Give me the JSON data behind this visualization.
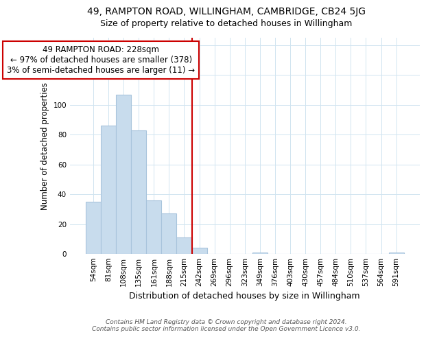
{
  "title": "49, RAMPTON ROAD, WILLINGHAM, CAMBRIDGE, CB24 5JG",
  "subtitle": "Size of property relative to detached houses in Willingham",
  "xlabel": "Distribution of detached houses by size in Willingham",
  "ylabel": "Number of detached properties",
  "bar_labels": [
    "54sqm",
    "81sqm",
    "108sqm",
    "135sqm",
    "161sqm",
    "188sqm",
    "215sqm",
    "242sqm",
    "269sqm",
    "296sqm",
    "323sqm",
    "349sqm",
    "376sqm",
    "403sqm",
    "430sqm",
    "457sqm",
    "484sqm",
    "510sqm",
    "537sqm",
    "564sqm",
    "591sqm"
  ],
  "bar_heights": [
    35,
    86,
    107,
    83,
    36,
    27,
    11,
    4,
    0,
    0,
    0,
    1,
    0,
    0,
    0,
    0,
    0,
    0,
    0,
    0,
    1
  ],
  "bar_color": "#c8dced",
  "bar_edge_color": "#a8c4dc",
  "reference_line_x": 6.5,
  "reference_line_color": "#cc0000",
  "annotation_box_text": "49 RAMPTON ROAD: 228sqm\n← 97% of detached houses are smaller (378)\n3% of semi-detached houses are larger (11) →",
  "annotation_box_edge_color": "#cc0000",
  "ylim": [
    0,
    145
  ],
  "yticks": [
    0,
    20,
    40,
    60,
    80,
    100,
    120,
    140
  ],
  "footer_line1": "Contains HM Land Registry data © Crown copyright and database right 2024.",
  "footer_line2": "Contains public sector information licensed under the Open Government Licence v3.0.",
  "title_fontsize": 10,
  "subtitle_fontsize": 9,
  "xlabel_fontsize": 9,
  "ylabel_fontsize": 8.5,
  "tick_fontsize": 7.5,
  "annotation_fontsize": 8.5,
  "footer_fontsize": 6.5,
  "grid_color": "#d0e4f0"
}
